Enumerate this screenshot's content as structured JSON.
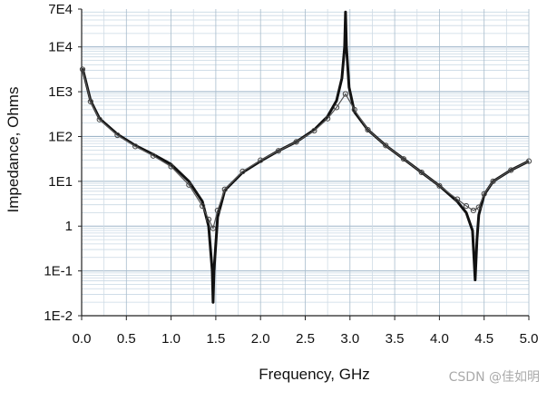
{
  "watermark": "CSDN @佳如明",
  "chart_data": {
    "type": "line",
    "title": "",
    "xlabel": "Frequency, GHz",
    "ylabel": "Impedance, Ohms",
    "xlim": [
      0,
      5
    ],
    "ylim_log10": [
      -2,
      4.845
    ],
    "yscale": "log",
    "grid": true,
    "x_ticks": [
      "0.0",
      "0.5",
      "1.0",
      "1.5",
      "2.0",
      "2.5",
      "3.0",
      "3.5",
      "4.0",
      "4.5",
      "5.0"
    ],
    "y_ticks": [
      {
        "label": "1E-2",
        "log10": -2
      },
      {
        "label": "1E-1",
        "log10": -1
      },
      {
        "label": "1",
        "log10": 0
      },
      {
        "label": "1E1",
        "log10": 1
      },
      {
        "label": "1E2",
        "log10": 2
      },
      {
        "label": "1E3",
        "log10": 3
      },
      {
        "label": "1E4",
        "log10": 4
      },
      {
        "label": "7E4",
        "log10": 4.845
      }
    ],
    "series": [
      {
        "style": "solid",
        "x": [
          0.01,
          0.1,
          0.2,
          0.4,
          0.6,
          0.8,
          1.0,
          1.2,
          1.35,
          1.42,
          1.46,
          1.47,
          1.48,
          1.52,
          1.6,
          1.8,
          2.0,
          2.2,
          2.4,
          2.6,
          2.75,
          2.85,
          2.91,
          2.94,
          2.95,
          2.96,
          2.99,
          3.05,
          3.2,
          3.4,
          3.6,
          3.8,
          4.0,
          4.2,
          4.3,
          4.37,
          4.4,
          4.42,
          4.44,
          4.5,
          4.6,
          4.8,
          5.0
        ],
        "log10_y": [
          3.52,
          2.8,
          2.4,
          2.05,
          1.8,
          1.6,
          1.38,
          1.0,
          0.55,
          0.0,
          -1.0,
          -1.7,
          -1.0,
          0.2,
          0.8,
          1.2,
          1.45,
          1.68,
          1.88,
          2.15,
          2.45,
          2.8,
          3.3,
          4.0,
          4.78,
          4.0,
          3.1,
          2.55,
          2.15,
          1.8,
          1.5,
          1.2,
          0.9,
          0.55,
          0.3,
          -0.1,
          -1.2,
          -0.3,
          0.25,
          0.7,
          1.0,
          1.25,
          1.45
        ]
      },
      {
        "style": "open-circle-markers",
        "x": [
          0.01,
          0.1,
          0.2,
          0.4,
          0.6,
          0.8,
          1.0,
          1.2,
          1.35,
          1.42,
          1.47,
          1.52,
          1.6,
          1.8,
          2.0,
          2.2,
          2.4,
          2.6,
          2.75,
          2.85,
          2.95,
          3.05,
          3.2,
          3.4,
          3.6,
          3.8,
          4.0,
          4.2,
          4.3,
          4.38,
          4.44,
          4.5,
          4.6,
          4.8,
          5.0
        ],
        "log10_y": [
          3.5,
          2.78,
          2.38,
          2.03,
          1.78,
          1.57,
          1.33,
          0.92,
          0.45,
          0.15,
          -0.05,
          0.35,
          0.82,
          1.22,
          1.47,
          1.68,
          1.88,
          2.13,
          2.4,
          2.65,
          2.95,
          2.6,
          2.15,
          1.8,
          1.5,
          1.2,
          0.9,
          0.6,
          0.45,
          0.35,
          0.42,
          0.72,
          1.0,
          1.25,
          1.45
        ]
      }
    ]
  }
}
